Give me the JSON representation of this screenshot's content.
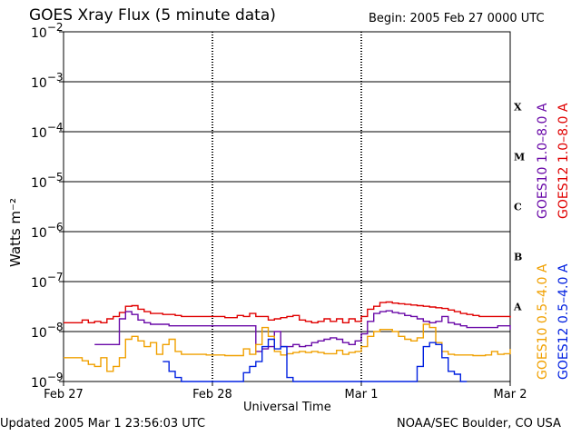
{
  "header": {
    "title": "GOES Xray Flux (5 minute data)",
    "begin_label": "Begin:  2005 Feb 27 0000 UTC"
  },
  "footer": {
    "updated": "Updated 2005 Mar  1 23:56:03 UTC",
    "source": "NOAA/SEC Boulder, CO USA"
  },
  "colors": {
    "goes12_long": "#e00000",
    "goes10_long": "#6a0aa8",
    "goes10_short": "#f0a000",
    "goes12_short": "#0020e0"
  },
  "chart_data": {
    "type": "line",
    "title": "GOES Xray Flux (5 minute data)",
    "xlabel": "Universal Time",
    "ylabel": "Watts m⁻²",
    "yscale": "log",
    "ylim": [
      1e-09,
      0.01
    ],
    "xlim": [
      0,
      72
    ],
    "x_unit": "hours since 2005 Feb 27 0000 UTC",
    "x_ticks": [
      {
        "x": 0,
        "label": "Feb 27"
      },
      {
        "x": 24,
        "label": "Feb 28"
      },
      {
        "x": 48,
        "label": "Mar 1"
      },
      {
        "x": 72,
        "label": "Mar 2"
      }
    ],
    "y_ticks": [
      {
        "exp": -2,
        "label": "10",
        "sup": "−2"
      },
      {
        "exp": -3,
        "label": "10",
        "sup": "−3"
      },
      {
        "exp": -4,
        "label": "10",
        "sup": "−4"
      },
      {
        "exp": -5,
        "label": "10",
        "sup": "−5"
      },
      {
        "exp": -6,
        "label": "10",
        "sup": "−6"
      },
      {
        "exp": -7,
        "label": "10",
        "sup": "−7"
      },
      {
        "exp": -8,
        "label": "10",
        "sup": "−8"
      },
      {
        "exp": -9,
        "label": "10",
        "sup": "−9"
      }
    ],
    "flare_classes": [
      {
        "label": "X",
        "exp": -3.5
      },
      {
        "label": "M",
        "exp": -4.5
      },
      {
        "label": "C",
        "exp": -5.5
      },
      {
        "label": "B",
        "exp": -6.5
      },
      {
        "label": "A",
        "exp": -7.5
      }
    ],
    "series": [
      {
        "name": "GOES12 1.0–8.0 A",
        "color": "#e00000",
        "x": [
          0,
          2,
          3,
          4,
          5,
          6,
          7,
          8,
          9,
          10,
          11,
          12,
          13,
          14,
          15,
          16,
          17,
          18,
          19,
          20,
          21,
          22,
          23,
          24,
          25,
          26,
          27,
          28,
          29,
          30,
          31,
          32,
          33,
          34,
          35,
          36,
          37,
          38,
          39,
          40,
          41,
          42,
          43,
          44,
          45,
          46,
          47,
          48,
          49,
          50,
          51,
          52,
          53,
          54,
          55,
          56,
          57,
          58,
          59,
          60,
          61,
          62,
          63,
          64,
          65,
          66,
          67,
          68,
          69,
          70,
          71,
          72
        ],
        "y": [
          1.5e-08,
          1.5e-08,
          1.7e-08,
          1.5e-08,
          1.6e-08,
          1.5e-08,
          1.8e-08,
          2e-08,
          2.4e-08,
          3.2e-08,
          3.3e-08,
          2.8e-08,
          2.5e-08,
          2.3e-08,
          2.3e-08,
          2.2e-08,
          2.2e-08,
          2.1e-08,
          2e-08,
          2e-08,
          2e-08,
          2e-08,
          2e-08,
          2e-08,
          2e-08,
          1.9e-08,
          1.9e-08,
          2.1e-08,
          2e-08,
          2.3e-08,
          2e-08,
          2e-08,
          1.7e-08,
          1.8e-08,
          1.9e-08,
          2e-08,
          2.1e-08,
          1.7e-08,
          1.6e-08,
          1.5e-08,
          1.6e-08,
          1.8e-08,
          1.6e-08,
          1.8e-08,
          1.5e-08,
          1.8e-08,
          1.6e-08,
          2e-08,
          2.8e-08,
          3.2e-08,
          3.8e-08,
          3.9e-08,
          3.7e-08,
          3.6e-08,
          3.5e-08,
          3.4e-08,
          3.3e-08,
          3.2e-08,
          3.1e-08,
          3e-08,
          2.9e-08,
          2.7e-08,
          2.5e-08,
          2.3e-08,
          2.2e-08,
          2.1e-08,
          2e-08,
          2e-08,
          2e-08,
          2e-08,
          2e-08,
          1.9e-08
        ]
      },
      {
        "name": "GOES10 1.0–8.0 A",
        "color": "#6a0aa8",
        "x": [
          5,
          6,
          7,
          8,
          9,
          10,
          11,
          12,
          13,
          14,
          15,
          16,
          17,
          18,
          19,
          20,
          21,
          22,
          23,
          24,
          25,
          26,
          27,
          28,
          29,
          30,
          31,
          32,
          33,
          34,
          35,
          36,
          37,
          38,
          39,
          40,
          41,
          42,
          43,
          44,
          45,
          46,
          47,
          48,
          49,
          50,
          51,
          52,
          53,
          54,
          55,
          56,
          57,
          58,
          59,
          60,
          61,
          62,
          63,
          64,
          65,
          66,
          67,
          68,
          69,
          70,
          71,
          72
        ],
        "y": [
          5.5e-09,
          5.5e-09,
          5.5e-09,
          5.5e-09,
          1.8e-08,
          2.5e-08,
          2.2e-08,
          1.7e-08,
          1.5e-08,
          1.4e-08,
          1.4e-08,
          1.4e-08,
          1.3e-08,
          1.3e-08,
          1.3e-08,
          1.3e-08,
          1.3e-08,
          1.3e-08,
          1.3e-08,
          1.3e-08,
          1.3e-08,
          1.3e-08,
          1.3e-08,
          1.3e-08,
          1.3e-08,
          1.3e-08,
          4e-09,
          4.5e-09,
          5e-09,
          1e-08,
          5e-09,
          5e-09,
          5.5e-09,
          5e-09,
          5.2e-09,
          6e-09,
          6.5e-09,
          7e-09,
          7.5e-09,
          7e-09,
          6e-09,
          5.5e-09,
          6.5e-09,
          9e-09,
          1.6e-08,
          2.3e-08,
          2.5e-08,
          2.6e-08,
          2.4e-08,
          2.3e-08,
          2.1e-08,
          2e-08,
          1.8e-08,
          1.6e-08,
          1.5e-08,
          1.6e-08,
          2e-08,
          1.5e-08,
          1.4e-08,
          1.3e-08,
          1.2e-08,
          1.2e-08,
          1.2e-08,
          1.2e-08,
          1.2e-08,
          1.3e-08,
          1.3e-08,
          1.1e-08
        ]
      },
      {
        "name": "GOES10 0.5–4.0 A",
        "color": "#f0a000",
        "x": [
          0,
          2,
          3,
          4,
          5,
          6,
          7,
          8,
          9,
          10,
          11,
          12,
          13,
          14,
          15,
          16,
          17,
          18,
          19,
          20,
          21,
          22,
          23,
          24,
          25,
          26,
          27,
          28,
          29,
          30,
          31,
          32,
          33,
          34,
          35,
          36,
          37,
          38,
          39,
          40,
          41,
          42,
          43,
          44,
          45,
          46,
          47,
          48,
          49,
          50,
          51,
          52,
          53,
          54,
          55,
          56,
          57,
          58,
          59,
          60,
          61,
          62,
          63,
          64,
          65,
          66,
          67,
          68,
          69,
          70,
          71,
          72
        ],
        "y": [
          3e-09,
          3e-09,
          2.6e-09,
          2.2e-09,
          2e-09,
          3e-09,
          1.6e-09,
          2e-09,
          3e-09,
          7e-09,
          8e-09,
          6.5e-09,
          5e-09,
          6e-09,
          3.5e-09,
          5.5e-09,
          7e-09,
          4e-09,
          3.5e-09,
          3.5e-09,
          3.5e-09,
          3.5e-09,
          3.4e-09,
          3.4e-09,
          3.4e-09,
          3.3e-09,
          3.3e-09,
          3.3e-09,
          4.5e-09,
          3.5e-09,
          5.5e-09,
          1.2e-08,
          8e-09,
          4e-09,
          3.4e-09,
          3.6e-09,
          3.8e-09,
          4e-09,
          3.8e-09,
          4e-09,
          3.8e-09,
          3.6e-09,
          3.6e-09,
          4.2e-09,
          3.5e-09,
          3.8e-09,
          4e-09,
          5e-09,
          8e-09,
          1e-08,
          1.1e-08,
          1.1e-08,
          1e-08,
          8e-09,
          7e-09,
          6.5e-09,
          7.5e-09,
          1.4e-08,
          1.2e-08,
          6e-09,
          4e-09,
          3.5e-09,
          3.4e-09,
          3.4e-09,
          3.4e-09,
          3.3e-09,
          3.3e-09,
          3.4e-09,
          4e-09,
          3.5e-09,
          3.6e-09,
          4.5e-09
        ]
      },
      {
        "name": "GOES12 0.5–4.0 A",
        "color": "#0020e0",
        "x": [
          16,
          17,
          18,
          19,
          20,
          21,
          22,
          23,
          24,
          25,
          26,
          27,
          28,
          29,
          30,
          31,
          32,
          33,
          34,
          35,
          36,
          37,
          38,
          39,
          40,
          41,
          42,
          43,
          44,
          45,
          46,
          47,
          48,
          49,
          50,
          51,
          52,
          53,
          54,
          55,
          56,
          57,
          58,
          59,
          60,
          61,
          62,
          63,
          64,
          65
        ],
        "y": [
          2.5e-09,
          1.6e-09,
          1.2e-09,
          1e-09,
          1e-09,
          1e-09,
          1e-09,
          1e-09,
          1e-09,
          1e-09,
          1e-09,
          1e-09,
          1e-09,
          1.5e-09,
          2e-09,
          2.5e-09,
          5e-09,
          7e-09,
          4.5e-09,
          5e-09,
          1.2e-09,
          1e-09,
          1e-09,
          1e-09,
          1e-09,
          1e-09,
          1e-09,
          1e-09,
          1e-09,
          1e-09,
          1e-09,
          1e-09,
          1e-09,
          1e-09,
          1e-09,
          1e-09,
          1e-09,
          1e-09,
          1e-09,
          1e-09,
          1e-09,
          2e-09,
          5e-09,
          6e-09,
          5.5e-09,
          3e-09,
          1.6e-09,
          1.4e-09,
          1e-09,
          1e-09
        ]
      }
    ],
    "blue_segments": [
      [
        0,
        6
      ],
      [
        16,
        30
      ],
      [
        30,
        38
      ],
      [
        56,
        65
      ]
    ]
  }
}
